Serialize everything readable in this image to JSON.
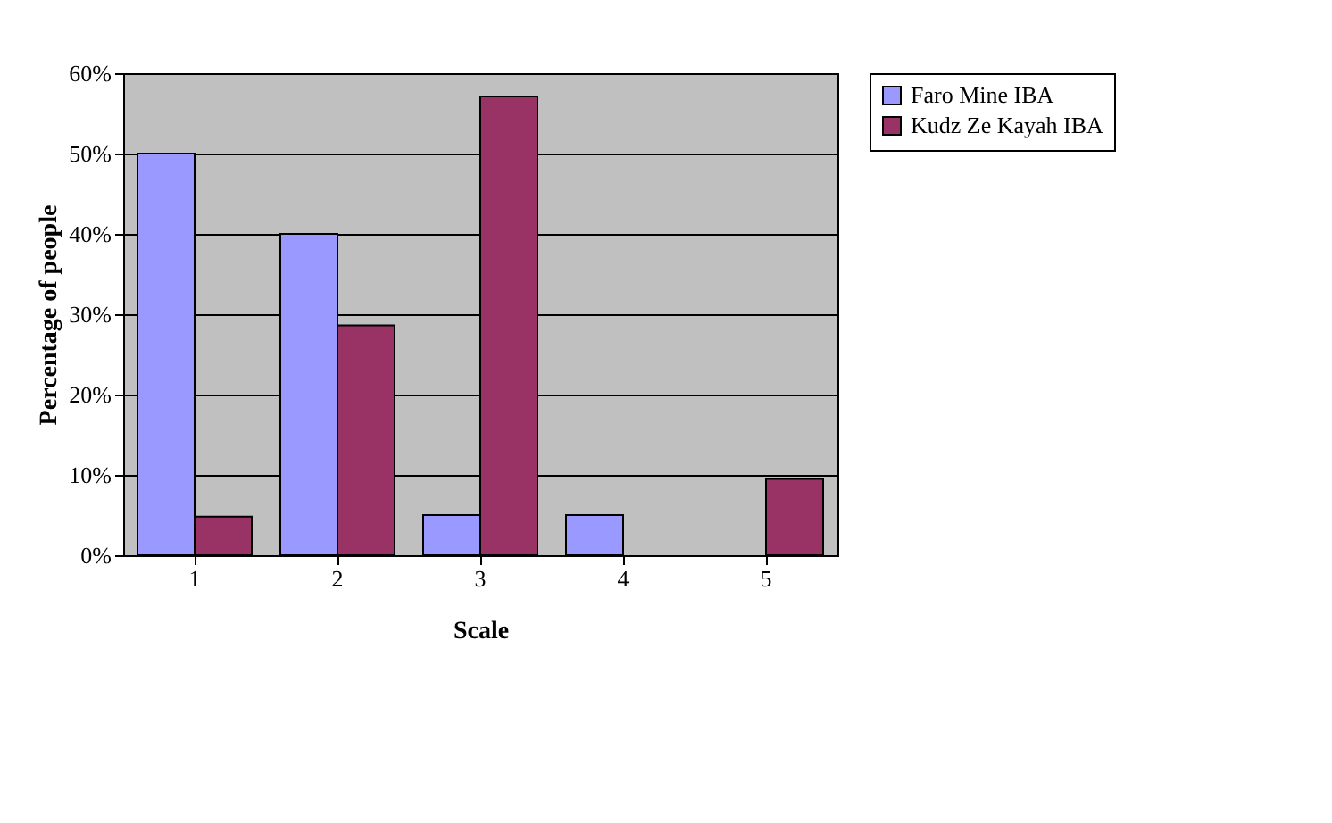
{
  "chart_data": {
    "type": "bar",
    "xlabel": "Scale",
    "ylabel": "Percentage of people",
    "categories": [
      "1",
      "2",
      "3",
      "4",
      "5"
    ],
    "series": [
      {
        "name": "Faro Mine IBA",
        "color": "#9999ff",
        "values": [
          50,
          40,
          5,
          5,
          null
        ]
      },
      {
        "name": "Kudz Ze Kayah IBA",
        "color": "#993366",
        "values": [
          4.8,
          28.6,
          57.1,
          null,
          9.5
        ]
      }
    ],
    "ylim": [
      0,
      60
    ],
    "yticks": [
      {
        "value": 0,
        "label": "0%"
      },
      {
        "value": 10,
        "label": "10%"
      },
      {
        "value": 20,
        "label": "20%"
      },
      {
        "value": 30,
        "label": "30%"
      },
      {
        "value": 40,
        "label": "40%"
      },
      {
        "value": 50,
        "label": "50%"
      },
      {
        "value": 60,
        "label": "60%"
      }
    ],
    "grid": "y",
    "legend": "right"
  }
}
